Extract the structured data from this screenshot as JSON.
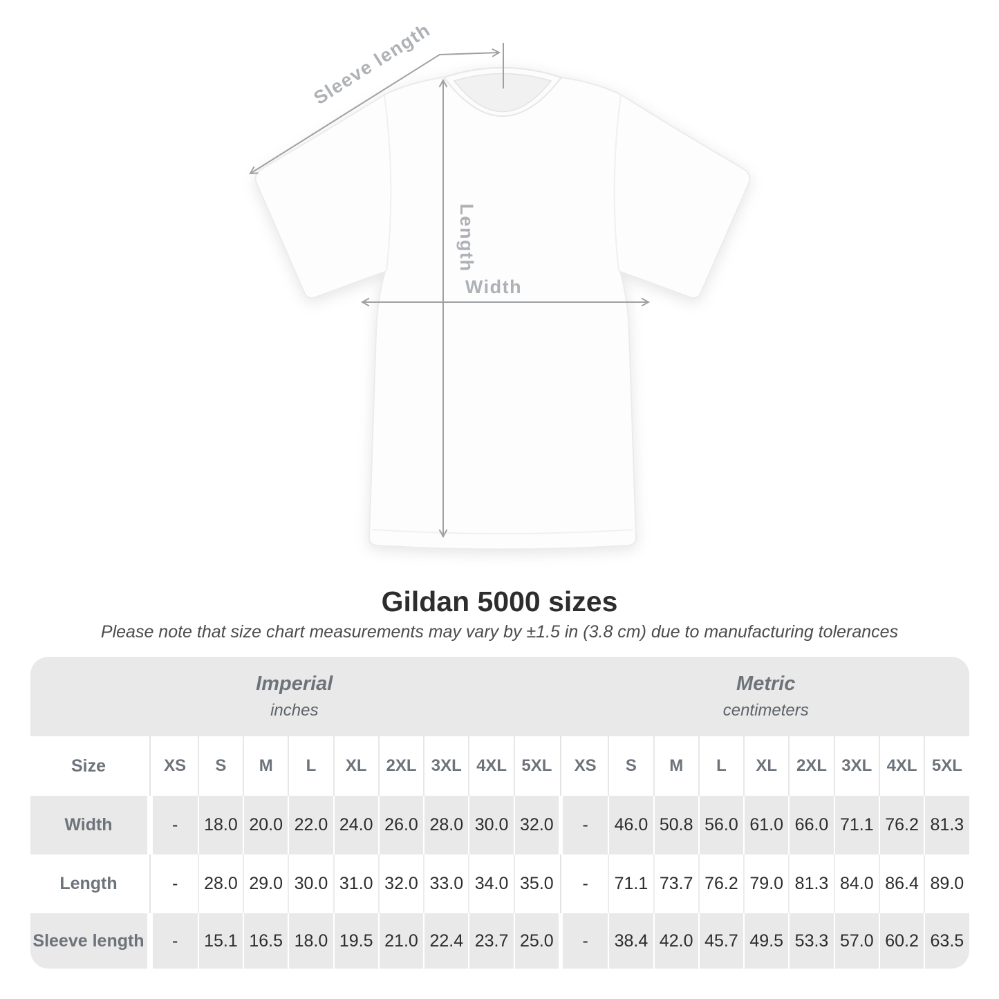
{
  "diagram": {
    "sleeve_label": "Sleeve length",
    "length_label": "Length",
    "width_label": "Width",
    "shirt_color": "#fdfdfd",
    "shirt_outline_color": "#ebebeb",
    "arrow_color": "#9da1a4",
    "annotation_text_color": "#aeb1b5"
  },
  "caption": {
    "title": "Gildan 5000 sizes",
    "subtitle": "Please note that size chart measurements may vary by ±1.5 in (3.8 cm) due to manufacturing tolerances"
  },
  "table": {
    "stripe_color": "#e9e9e9",
    "header_text_color": "#6d737a",
    "value_text_color": "#2c2c2c",
    "groups": [
      {
        "label": "Imperial",
        "unit": "inches"
      },
      {
        "label": "Metric",
        "unit": "centimeters"
      }
    ],
    "size_column_header": "Size",
    "sizes": [
      "XS",
      "S",
      "M",
      "L",
      "XL",
      "2XL",
      "3XL",
      "4XL",
      "5XL"
    ],
    "rows": [
      {
        "label": "Width",
        "imperial": [
          "-",
          "18.0",
          "20.0",
          "22.0",
          "24.0",
          "26.0",
          "28.0",
          "30.0",
          "32.0"
        ],
        "metric": [
          "-",
          "46.0",
          "50.8",
          "56.0",
          "61.0",
          "66.0",
          "71.1",
          "76.2",
          "81.3"
        ]
      },
      {
        "label": "Length",
        "imperial": [
          "-",
          "28.0",
          "29.0",
          "30.0",
          "31.0",
          "32.0",
          "33.0",
          "34.0",
          "35.0"
        ],
        "metric": [
          "-",
          "71.1",
          "73.7",
          "76.2",
          "79.0",
          "81.3",
          "84.0",
          "86.4",
          "89.0"
        ]
      },
      {
        "label": "Sleeve length",
        "imperial": [
          "-",
          "15.1",
          "16.5",
          "18.0",
          "19.5",
          "21.0",
          "22.4",
          "23.7",
          "25.0"
        ],
        "metric": [
          "-",
          "38.4",
          "42.0",
          "45.7",
          "49.5",
          "53.3",
          "57.0",
          "60.2",
          "63.5"
        ]
      }
    ]
  }
}
